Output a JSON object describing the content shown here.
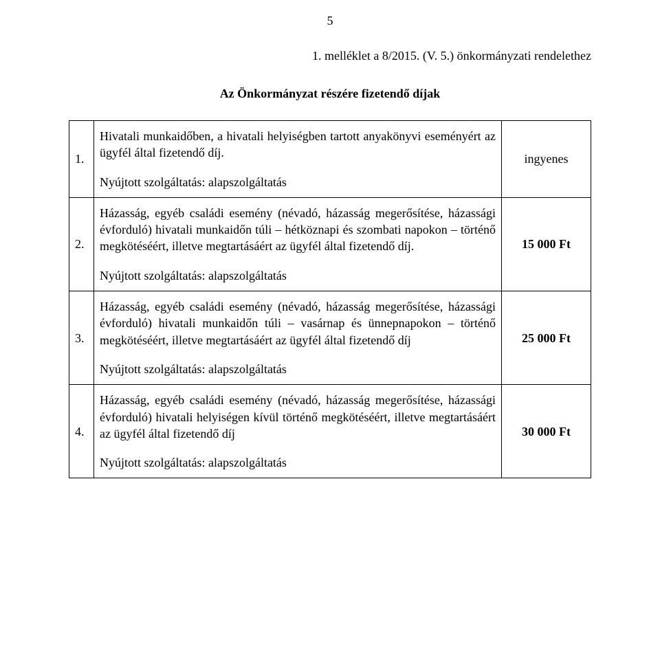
{
  "page_number": "5",
  "title": "1. melléklet a 8/2015. (V. 5.) önkormányzati rendelethez",
  "subtitle": "Az Önkormányzat részére fizetendő díjak",
  "service_line": "Nyújtott szolgáltatás: alapszolgáltatás",
  "rows": {
    "r1": {
      "num": "1.",
      "p1": "Hivatali munkaidőben, a hivatali helyiségben tartott anyakönyvi eseményért az ügyfél által fizetendő díj.",
      "price": "ingyenes",
      "price_bold": false
    },
    "r2": {
      "num": "2.",
      "p1": "Házasság, egyéb családi esemény (névadó, házasság megerősítése, házassági évforduló) hivatali munkaidőn túli – hétköznapi és szombati napokon – történő megkötéséért, illetve megtartásáért az ügyfél által fizetendő díj.",
      "price": "15 000 Ft",
      "price_bold": true
    },
    "r3": {
      "num": "3.",
      "p1": "Házasság, egyéb családi esemény (névadó, házasság megerősítése, házassági évforduló) hivatali munkaidőn túli – vasárnap és ünnepnapokon – történő megkötéséért, illetve megtartásáért az ügyfél által fizetendő díj",
      "price": "25 000 Ft",
      "price_bold": true
    },
    "r4": {
      "num": "4.",
      "p1": "Házasság, egyéb családi esemény (névadó, házasság megerősítése, házassági évforduló) hivatali helyiségen kívül történő megkötéséért, illetve megtartásáért az ügyfél által fizetendő díj",
      "price": "30 000 Ft",
      "price_bold": true
    }
  }
}
